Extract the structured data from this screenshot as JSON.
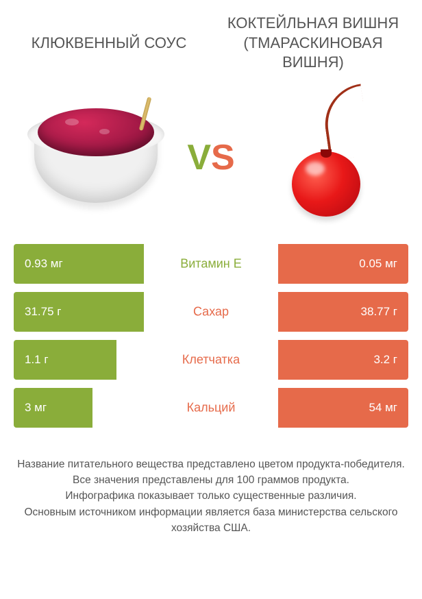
{
  "colors": {
    "green": "#8aad3a",
    "orange": "#e66a4a"
  },
  "left": {
    "title": "КЛЮКВЕННЫЙ СОУС"
  },
  "right": {
    "title": "КОКТЕЙЛЬНАЯ ВИШНЯ (ТМАРАСКИНОВАЯ ВИШНЯ)"
  },
  "vs": {
    "v": "V",
    "s": "S"
  },
  "rows": [
    {
      "label": "Витамин E",
      "left_value": "0.93 мг",
      "right_value": "0.05 мг",
      "winner": "left",
      "left_width": 33,
      "right_width": 33
    },
    {
      "label": "Сахар",
      "left_value": "31.75 г",
      "right_value": "38.77 г",
      "winner": "right",
      "left_width": 33,
      "right_width": 33
    },
    {
      "label": "Клетчатка",
      "left_value": "1.1 г",
      "right_value": "3.2 г",
      "winner": "right",
      "left_width": 26,
      "right_width": 33
    },
    {
      "label": "Кальций",
      "left_value": "3 мг",
      "right_value": "54 мг",
      "winner": "right",
      "left_width": 20,
      "right_width": 33
    }
  ],
  "footer": {
    "l1": "Название питательного вещества представлено цветом продукта-победителя.",
    "l2": "Все значения представлены для 100 граммов продукта.",
    "l3": "Инфографика показывает только существенные различия.",
    "l4": "Основным источником информации является база министерства сельского хозяйства США."
  }
}
